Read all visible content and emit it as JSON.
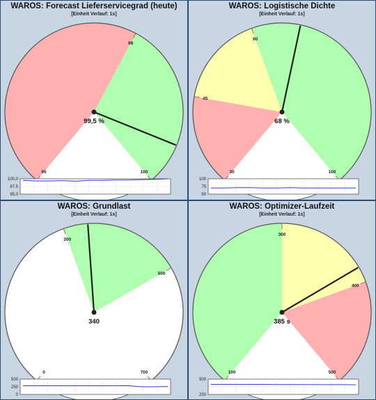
{
  "panels": [
    {
      "title": "WAROS: Forecast Lieferservicegrad (heute)",
      "subtitle": "[Einheit Verlauf: 1s]",
      "value_text": "99,5 %",
      "gauge": {
        "min": 95,
        "max": 100,
        "value": 99.5,
        "scale_labels": [
          "95",
          "98",
          "100"
        ],
        "zones": [
          {
            "from": 95,
            "to": 98,
            "color": "#ffb0b0"
          },
          {
            "from": 98,
            "to": 100,
            "color": "#b0ffb0"
          }
        ]
      },
      "trend": {
        "y_labels": [
          "100,0",
          "97,5",
          "95,0"
        ],
        "ymin": 95,
        "ymax": 100,
        "values": [
          99.5,
          99.3,
          99.3,
          99.4,
          99.2,
          99.5,
          99.5,
          99.6,
          99.6,
          99.7,
          99.8,
          100.0
        ]
      }
    },
    {
      "title": "WAROS: Logistische Dichte",
      "subtitle": "[Einheit Verlauf: 1s]",
      "value_text": "68 %",
      "gauge": {
        "min": 30,
        "max": 100,
        "value": 68,
        "scale_labels": [
          "30",
          "45",
          "60",
          "100"
        ],
        "zones": [
          {
            "from": 30,
            "to": 45,
            "color": "#ffb0b0"
          },
          {
            "from": 45,
            "to": 60,
            "color": "#ffffb0"
          },
          {
            "from": 60,
            "to": 100,
            "color": "#b0ffb0"
          }
        ]
      },
      "trend": {
        "y_labels": [
          "100",
          "75",
          "50"
        ],
        "ymin": 50,
        "ymax": 100,
        "values": [
          70,
          70,
          71,
          71,
          70,
          70,
          71,
          70,
          70,
          70,
          70,
          70
        ]
      }
    },
    {
      "title": "WAROS: Grundlast",
      "subtitle": "[Einheit Verlauf: 1s]",
      "value_text": "340",
      "gauge": {
        "min": 0,
        "max": 700,
        "value": 340,
        "scale_labels": [
          "0",
          "300",
          "500",
          "700"
        ],
        "zones": [
          {
            "from": 0,
            "to": 300,
            "color": "#ffffff"
          },
          {
            "from": 300,
            "to": 500,
            "color": "#b0ffb0"
          },
          {
            "from": 500,
            "to": 700,
            "color": "#ffffff"
          }
        ]
      },
      "trend": {
        "y_labels": [
          "500",
          "250",
          "0"
        ],
        "ymin": 0,
        "ymax": 600,
        "values": [
          340,
          340,
          340,
          340,
          340,
          340,
          340,
          340,
          345,
          300,
          300,
          310
        ]
      }
    },
    {
      "title": "WAROS: Optimizer-Laufzeit",
      "subtitle": "[Einheit Verlauf: 1s]",
      "value_text": "385 s",
      "gauge": {
        "min": 100,
        "max": 500,
        "value": 385,
        "scale_labels": [
          "100",
          "300",
          "400",
          "500"
        ],
        "zones": [
          {
            "from": 100,
            "to": 300,
            "color": "#b0ffb0"
          },
          {
            "from": 300,
            "to": 400,
            "color": "#ffffb0"
          },
          {
            "from": 400,
            "to": 500,
            "color": "#ffb0b0"
          }
        ]
      },
      "trend": {
        "y_labels": [
          "500",
          "250"
        ],
        "ymin": 100,
        "ymax": 600,
        "values": [
          430,
          430,
          430,
          430,
          430,
          425,
          425,
          425,
          420,
          420,
          420,
          415
        ]
      }
    }
  ]
}
